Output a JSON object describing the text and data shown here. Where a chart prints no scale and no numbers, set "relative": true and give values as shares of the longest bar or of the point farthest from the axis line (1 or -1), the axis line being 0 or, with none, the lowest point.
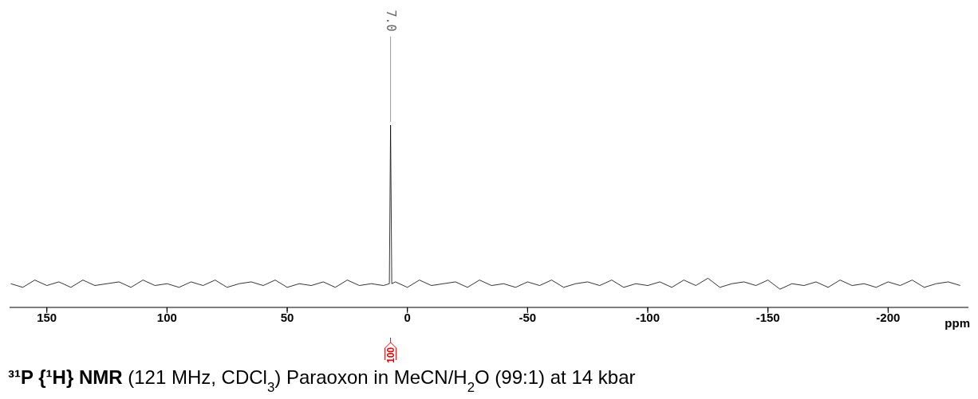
{
  "chart_data": {
    "type": "line",
    "title": "³¹P {¹H} NMR (121 MHz, CDCl$_{3}$) Paraoxon in MeCN/H$_{2}$O (99:1) at 14 kbar",
    "xlabel": "ppm",
    "relative": true,
    "x": [
      165,
      160,
      155,
      150,
      145,
      140,
      135,
      130,
      125,
      120,
      115,
      110,
      105,
      100,
      95,
      90,
      85,
      80,
      75,
      70,
      65,
      60,
      55,
      50,
      45,
      40,
      35,
      30,
      25,
      20,
      15,
      10,
      7.5,
      7,
      6.5,
      5,
      0,
      -5,
      -10,
      -15,
      -20,
      -25,
      -30,
      -35,
      -40,
      -45,
      -50,
      -55,
      -60,
      -65,
      -70,
      -75,
      -80,
      -85,
      -90,
      -95,
      -100,
      -105,
      -110,
      -115,
      -120,
      -125,
      -130,
      -135,
      -140,
      -145,
      -150,
      -155,
      -160,
      -165,
      -170,
      -175,
      -180,
      -185,
      -190,
      -195,
      -200,
      -205,
      -210,
      -215,
      -220,
      -225,
      -230
    ],
    "series": [
      {
        "color": "#000000",
        "values": [
          0.13,
          0.11,
          0.15,
          0.12,
          0.14,
          0.11,
          0.15,
          0.12,
          0.13,
          0.14,
          0.11,
          0.15,
          0.12,
          0.13,
          0.11,
          0.14,
          0.12,
          0.15,
          0.11,
          0.13,
          0.14,
          0.12,
          0.15,
          0.11,
          0.13,
          0.12,
          0.14,
          0.11,
          0.15,
          0.12,
          0.13,
          0.12,
          0.13,
          1,
          0.13,
          0.14,
          0.11,
          0.15,
          0.12,
          0.13,
          0.14,
          0.11,
          0.15,
          0.12,
          0.13,
          0.11,
          0.14,
          0.12,
          0.15,
          0.11,
          0.13,
          0.14,
          0.12,
          0.15,
          0.11,
          0.13,
          0.12,
          0.14,
          0.11,
          0.15,
          0.12,
          0.16,
          0.11,
          0.13,
          0.14,
          0.12,
          0.15,
          0.1,
          0.13,
          0.12,
          0.14,
          0.11,
          0.15,
          0.12,
          0.13,
          0.11,
          0.14,
          0.12,
          0.15,
          0.11,
          0.13,
          0.14,
          0.12
        ]
      }
    ],
    "xlim": [
      165.5,
      -233.4
    ],
    "xticks": [
      150,
      100,
      50,
      0,
      -50,
      -100,
      -150,
      -200
    ],
    "annotations": [
      {
        "text": "7.0",
        "x": 7,
        "y": 1
      },
      {
        "text": "100",
        "x": 7
      }
    ],
    "marker": "none",
    "line_style": "solid"
  }
}
